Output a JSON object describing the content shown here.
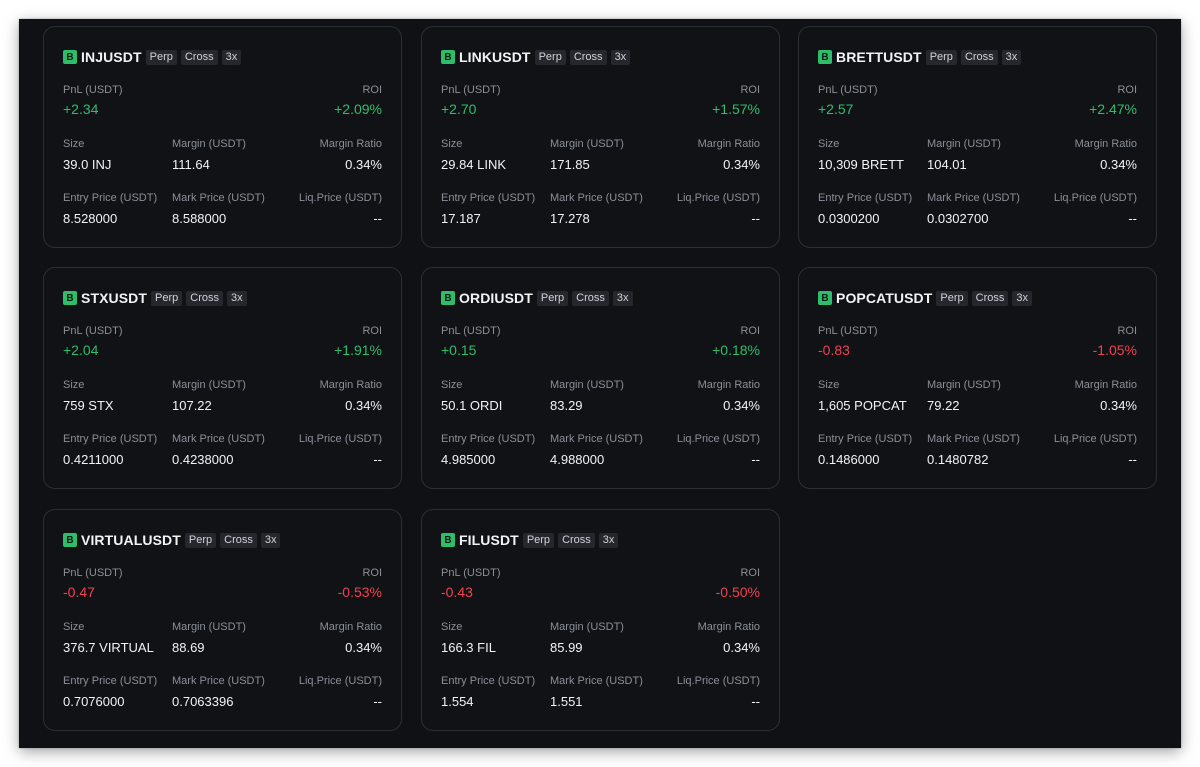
{
  "labels": {
    "pnl": "PnL (USDT)",
    "roi": "ROI",
    "size": "Size",
    "margin": "Margin (USDT)",
    "margin_ratio": "Margin Ratio",
    "entry": "Entry Price (USDT)",
    "mark": "Mark Price (USDT)",
    "liq": "Liq.Price (USDT)"
  },
  "colors": {
    "positive": "#2ebd6b",
    "negative": "#f0414f",
    "badge": "#2ebd6b"
  },
  "positions": [
    {
      "side": "B",
      "symbol": "INJUSDT",
      "type": "Perp",
      "mode": "Cross",
      "leverage": "3x",
      "pnl": "+2.34",
      "roi": "+2.09%",
      "direction": "pos",
      "size": "39.0 INJ",
      "margin": "111.64",
      "margin_ratio": "0.34%",
      "entry": "8.528000",
      "mark": "8.588000",
      "liq": "--"
    },
    {
      "side": "B",
      "symbol": "LINKUSDT",
      "type": "Perp",
      "mode": "Cross",
      "leverage": "3x",
      "pnl": "+2.70",
      "roi": "+1.57%",
      "direction": "pos",
      "size": "29.84 LINK",
      "margin": "171.85",
      "margin_ratio": "0.34%",
      "entry": "17.187",
      "mark": "17.278",
      "liq": "--"
    },
    {
      "side": "B",
      "symbol": "BRETTUSDT",
      "type": "Perp",
      "mode": "Cross",
      "leverage": "3x",
      "pnl": "+2.57",
      "roi": "+2.47%",
      "direction": "pos",
      "size": "10,309 BRETT",
      "margin": "104.01",
      "margin_ratio": "0.34%",
      "entry": "0.0300200",
      "mark": "0.0302700",
      "liq": "--"
    },
    {
      "side": "B",
      "symbol": "STXUSDT",
      "type": "Perp",
      "mode": "Cross",
      "leverage": "3x",
      "pnl": "+2.04",
      "roi": "+1.91%",
      "direction": "pos",
      "size": "759 STX",
      "margin": "107.22",
      "margin_ratio": "0.34%",
      "entry": "0.4211000",
      "mark": "0.4238000",
      "liq": "--"
    },
    {
      "side": "B",
      "symbol": "ORDIUSDT",
      "type": "Perp",
      "mode": "Cross",
      "leverage": "3x",
      "pnl": "+0.15",
      "roi": "+0.18%",
      "direction": "pos",
      "size": "50.1 ORDI",
      "margin": "83.29",
      "margin_ratio": "0.34%",
      "entry": "4.985000",
      "mark": "4.988000",
      "liq": "--"
    },
    {
      "side": "B",
      "symbol": "POPCATUSDT",
      "type": "Perp",
      "mode": "Cross",
      "leverage": "3x",
      "pnl": "-0.83",
      "roi": "-1.05%",
      "direction": "neg",
      "size": "1,605 POPCAT",
      "margin": "79.22",
      "margin_ratio": "0.34%",
      "entry": "0.1486000",
      "mark": "0.1480782",
      "liq": "--"
    },
    {
      "side": "B",
      "symbol": "VIRTUALUSDT",
      "type": "Perp",
      "mode": "Cross",
      "leverage": "3x",
      "pnl": "-0.47",
      "roi": "-0.53%",
      "direction": "neg",
      "size": "376.7 VIRTUAL",
      "margin": "88.69",
      "margin_ratio": "0.34%",
      "entry": "0.7076000",
      "mark": "0.7063396",
      "liq": "--"
    },
    {
      "side": "B",
      "symbol": "FILUSDT",
      "type": "Perp",
      "mode": "Cross",
      "leverage": "3x",
      "pnl": "-0.43",
      "roi": "-0.50%",
      "direction": "neg",
      "size": "166.3 FIL",
      "margin": "85.99",
      "margin_ratio": "0.34%",
      "entry": "1.554",
      "mark": "1.551",
      "liq": "--"
    }
  ]
}
